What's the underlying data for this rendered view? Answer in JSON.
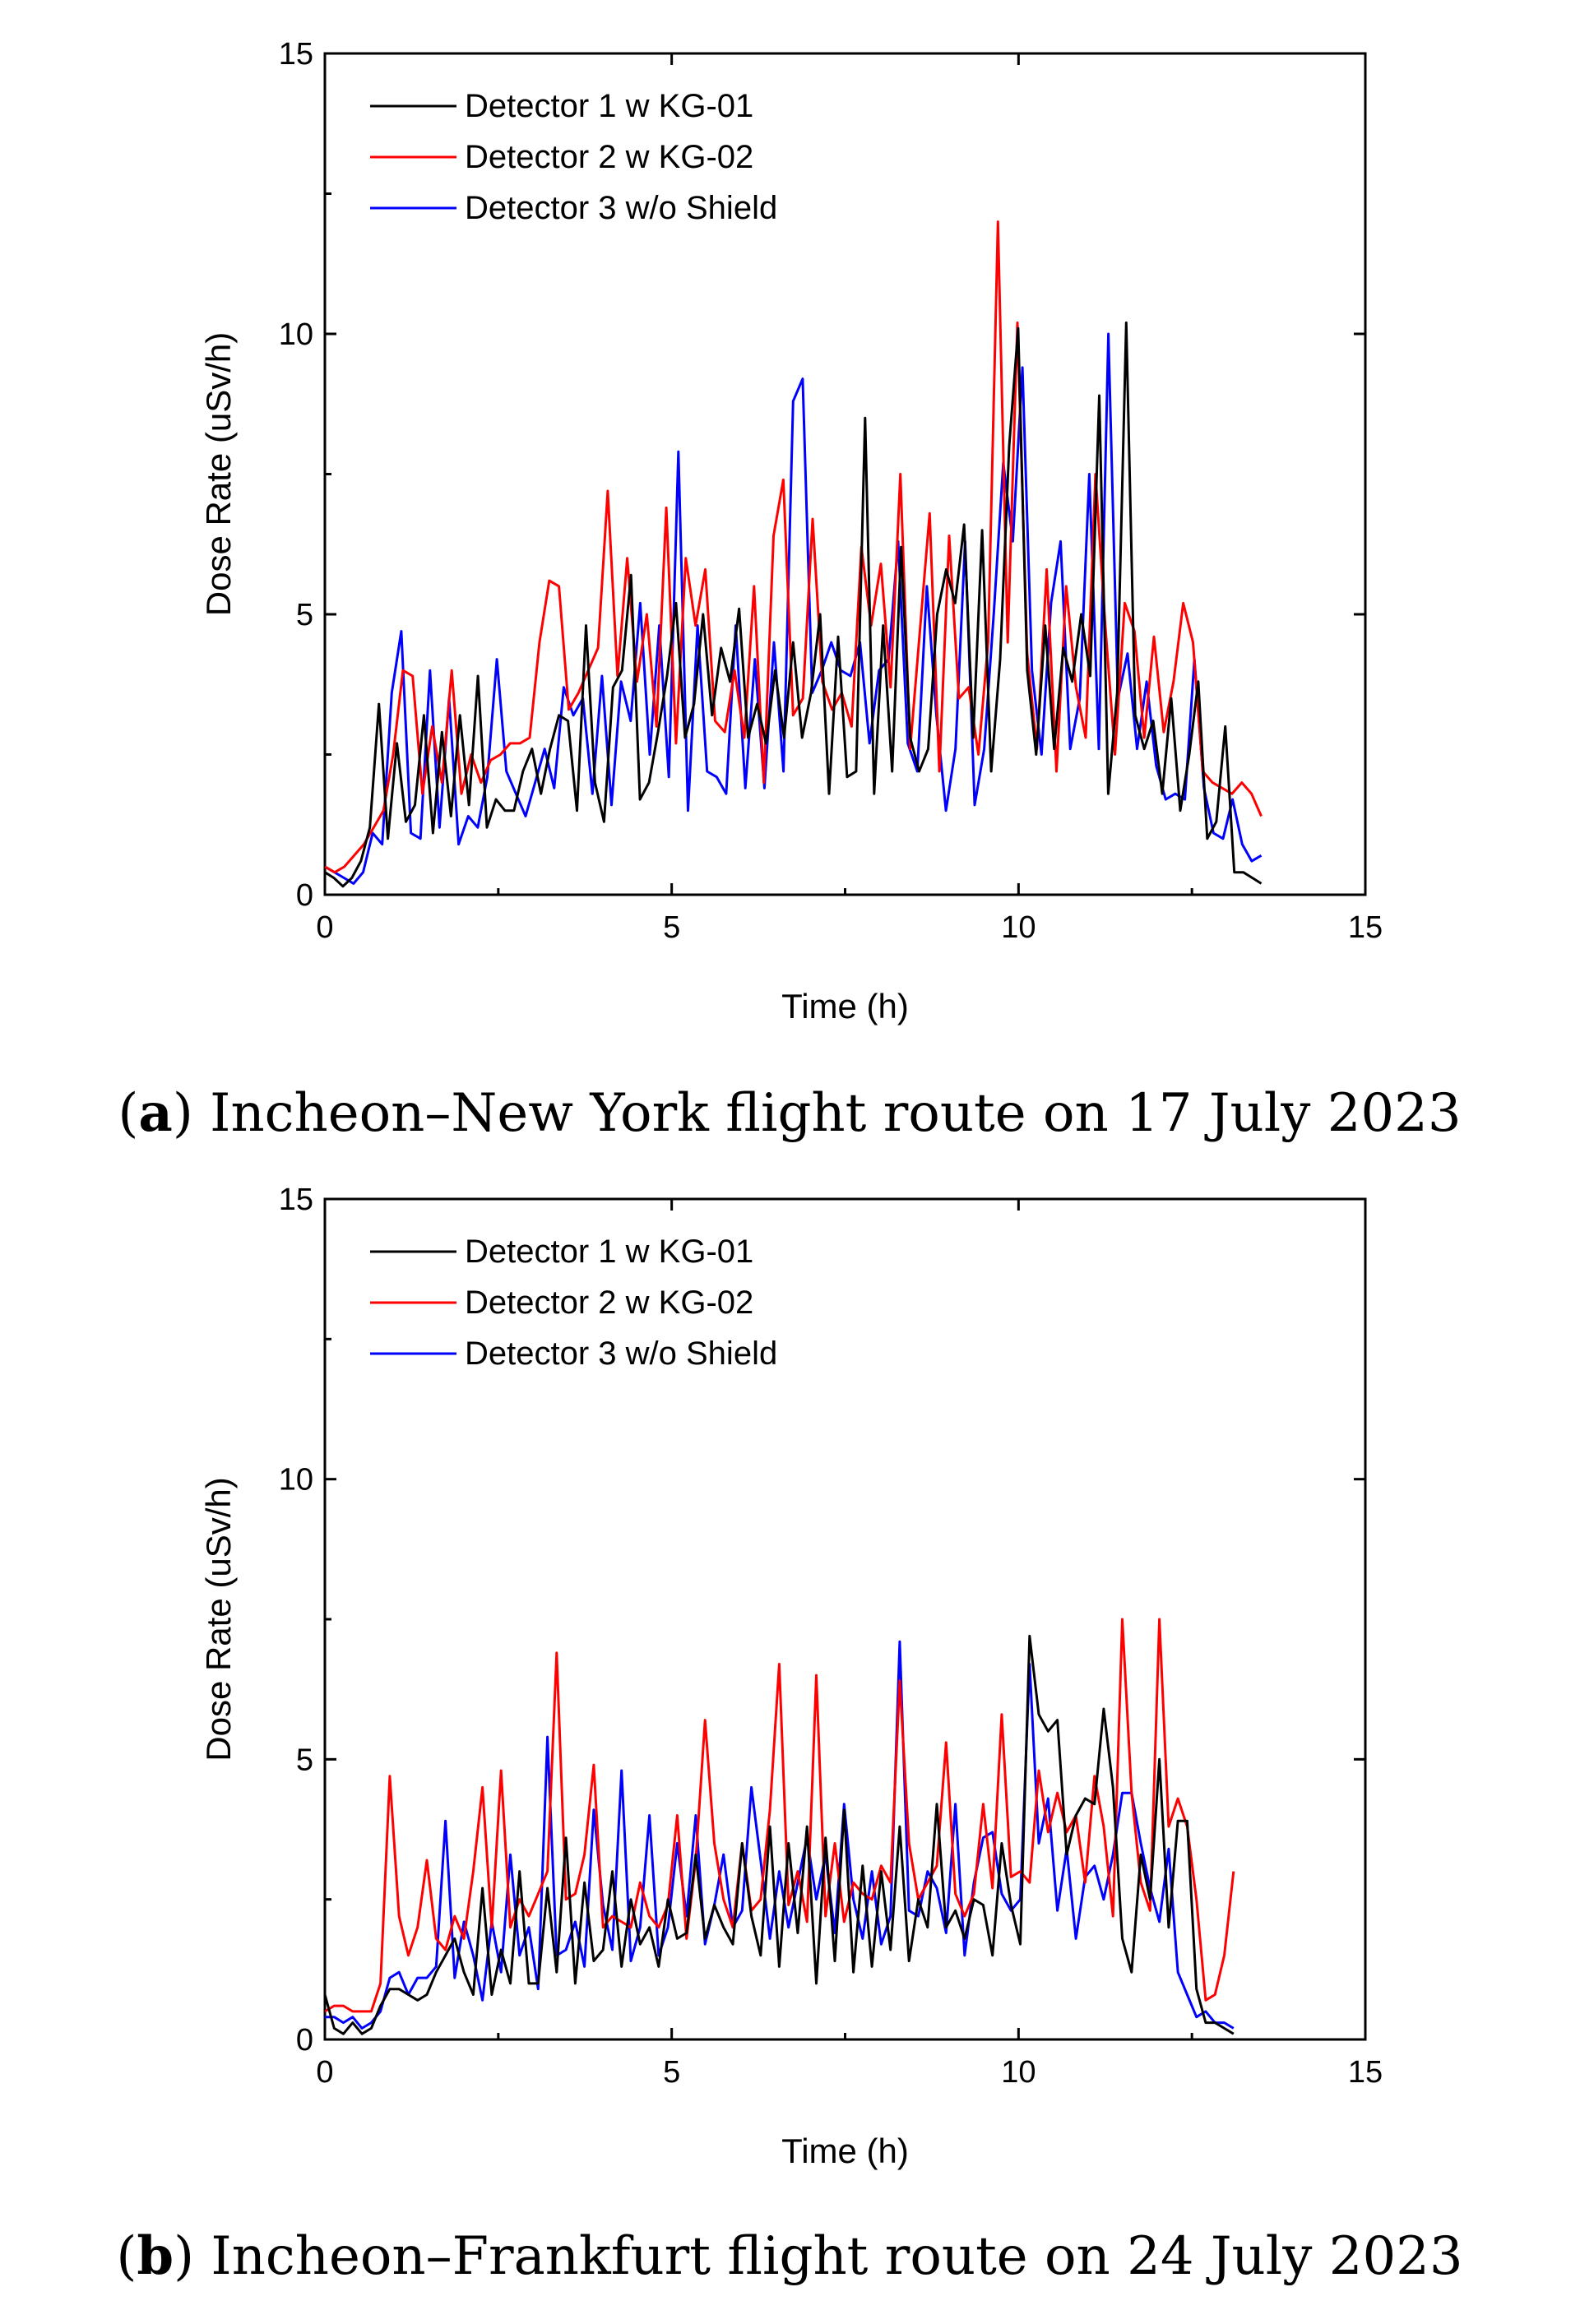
{
  "chart_data": [
    {
      "type": "line",
      "caption_letter": "a",
      "caption_text": "Incheon–New York flight route on 17 July 2023",
      "xlabel": "Time (h)",
      "ylabel": "Dose Rate (uSv/h)",
      "xlim": [
        0,
        15
      ],
      "ylim": [
        0,
        15
      ],
      "xticks": [
        "0",
        "5",
        "10",
        "15"
      ],
      "yticks": [
        "0",
        "5",
        "10",
        "15"
      ],
      "legend_position": "top-left",
      "series": [
        {
          "name": "Detector 1 w KG-01",
          "color": "#000000",
          "values": [
            0.4,
            0.3,
            0.15,
            0.3,
            0.6,
            1.2,
            3.4,
            1.0,
            2.7,
            1.3,
            1.6,
            3.2,
            1.1,
            2.9,
            1.4,
            3.2,
            1.6,
            3.9,
            1.2,
            1.7,
            1.5,
            1.5,
            2.2,
            2.6,
            1.8,
            2.6,
            3.2,
            3.1,
            1.5,
            4.8,
            2.0,
            1.3,
            3.7,
            4.0,
            5.7,
            1.7,
            2.0,
            2.9,
            3.9,
            5.2,
            2.8,
            3.4,
            5.0,
            3.2,
            4.4,
            3.8,
            5.1,
            2.8,
            3.4,
            2.7,
            4.0,
            2.8,
            4.5,
            2.8,
            3.6,
            5.0,
            1.8,
            4.6,
            2.1,
            2.2,
            8.5,
            1.8,
            4.8,
            2.2,
            6.2,
            2.8,
            2.2,
            2.6,
            5.0,
            5.8,
            5.2,
            6.6,
            2.8,
            6.5,
            2.2,
            4.2,
            8.0,
            10.1,
            4.0,
            2.5,
            4.8,
            2.6,
            4.4,
            3.8,
            5.0,
            3.9,
            8.9,
            1.8,
            3.6,
            10.2,
            3.2,
            2.6,
            3.1,
            1.8,
            3.5,
            1.5,
            2.5,
            3.8,
            1.0,
            1.3,
            3.0,
            0.4,
            0.4,
            0.3,
            0.2
          ]
        },
        {
          "name": "Detector 2 w KG-02",
          "color": "#ff0000",
          "values": [
            0.5,
            0.4,
            0.5,
            0.7,
            0.9,
            1.2,
            1.5,
            2.5,
            4.0,
            3.9,
            1.8,
            3.0,
            2.0,
            4.0,
            1.8,
            2.5,
            2.0,
            2.4,
            2.5,
            2.7,
            2.7,
            2.8,
            4.5,
            5.6,
            5.5,
            3.3,
            3.6,
            4.0,
            4.4,
            7.2,
            3.9,
            6.0,
            3.8,
            5.0,
            3.0,
            6.9,
            2.7,
            6.0,
            4.8,
            5.8,
            3.1,
            2.9,
            4.0,
            2.8,
            5.5,
            2.0,
            6.4,
            7.4,
            3.2,
            3.5,
            6.7,
            3.8,
            3.3,
            3.6,
            3.0,
            6.2,
            4.8,
            5.9,
            3.7,
            7.5,
            2.6,
            4.7,
            6.8,
            2.2,
            6.4,
            3.5,
            3.7,
            2.5,
            4.5,
            12.0,
            4.5,
            10.2,
            4.3,
            2.6,
            5.8,
            2.2,
            5.5,
            3.7,
            2.8,
            7.5,
            4.8,
            2.5,
            5.2,
            4.7,
            2.8,
            4.6,
            2.9,
            3.8,
            5.2,
            4.5,
            2.2,
            2.0,
            1.9,
            1.8,
            2.0,
            1.8,
            1.4
          ]
        },
        {
          "name": "Detector 3 w/o Shield",
          "color": "#0000ff",
          "values": [
            0.5,
            0.4,
            0.3,
            0.2,
            0.4,
            1.1,
            0.9,
            3.6,
            4.7,
            1.1,
            1.0,
            4.0,
            1.2,
            3.5,
            0.9,
            1.4,
            1.2,
            2.1,
            4.2,
            2.2,
            1.8,
            1.4,
            2.0,
            2.6,
            1.9,
            3.7,
            3.2,
            3.5,
            1.8,
            3.9,
            1.6,
            3.8,
            3.1,
            5.2,
            2.5,
            4.8,
            2.1,
            7.9,
            1.5,
            4.8,
            2.2,
            2.1,
            1.8,
            4.8,
            1.9,
            4.2,
            1.9,
            4.5,
            2.2,
            8.8,
            9.2,
            3.6,
            4.0,
            4.5,
            4.0,
            3.9,
            4.5,
            2.7,
            4.0,
            4.2,
            6.3,
            2.7,
            2.2,
            5.5,
            3.2,
            1.5,
            2.6,
            6.3,
            1.6,
            2.6,
            5.0,
            7.7,
            6.3,
            9.4,
            4.0,
            2.5,
            5.2,
            6.3,
            2.6,
            3.5,
            7.5,
            2.6,
            10.0,
            3.5,
            4.3,
            2.6,
            3.8,
            2.3,
            1.7,
            1.8,
            1.7,
            4.2,
            1.9,
            1.1,
            1.0,
            1.7,
            0.9,
            0.6,
            0.7
          ]
        }
      ]
    },
    {
      "type": "line",
      "caption_letter": "b",
      "caption_text": "Incheon–Frankfurt flight route on 24 July 2023",
      "xlabel": "Time (h)",
      "ylabel": "Dose Rate (uSv/h)",
      "xlim": [
        0,
        15
      ],
      "ylim": [
        0,
        15
      ],
      "xticks": [
        "0",
        "5",
        "10",
        "15"
      ],
      "yticks": [
        "0",
        "5",
        "10",
        "15"
      ],
      "legend_position": "top-left",
      "series": [
        {
          "name": "Detector 1 w KG-01",
          "color": "#000000",
          "values": [
            0.8,
            0.2,
            0.1,
            0.3,
            0.1,
            0.2,
            0.6,
            0.9,
            0.9,
            0.8,
            0.7,
            0.8,
            1.2,
            1.5,
            1.8,
            1.2,
            0.8,
            2.7,
            0.8,
            1.6,
            1.0,
            3.0,
            1.0,
            1.0,
            2.7,
            1.2,
            3.6,
            1.0,
            2.8,
            1.4,
            1.6,
            3.0,
            1.3,
            2.5,
            1.7,
            2.0,
            1.3,
            2.5,
            1.8,
            1.9,
            3.3,
            1.8,
            2.4,
            2.0,
            1.7,
            3.5,
            2.2,
            1.5,
            3.8,
            1.3,
            3.5,
            1.9,
            3.8,
            1.0,
            3.6,
            1.4,
            4.1,
            1.2,
            3.1,
            1.3,
            3.0,
            1.6,
            3.8,
            1.4,
            2.5,
            2.0,
            4.2,
            2.0,
            2.3,
            1.8,
            2.5,
            2.4,
            1.5,
            3.5,
            2.4,
            1.7,
            7.2,
            5.8,
            5.5,
            5.7,
            3.3,
            4.0,
            4.3,
            4.2,
            5.9,
            4.5,
            1.8,
            1.2,
            3.3,
            2.5,
            5.0,
            2.0,
            3.9,
            3.9,
            0.9,
            0.3,
            0.3,
            0.2,
            0.1
          ]
        },
        {
          "name": "Detector 2 w KG-02",
          "color": "#ff0000",
          "values": [
            0.5,
            0.6,
            0.6,
            0.5,
            0.5,
            0.5,
            1.0,
            4.7,
            2.2,
            1.5,
            2.0,
            3.2,
            1.8,
            1.6,
            2.2,
            1.8,
            3.0,
            4.5,
            2.0,
            4.8,
            2.0,
            2.5,
            2.2,
            2.6,
            3.0,
            6.9,
            2.5,
            2.6,
            3.3,
            4.9,
            2.0,
            2.2,
            2.1,
            2.0,
            2.8,
            2.2,
            2.0,
            2.4,
            4.0,
            1.8,
            3.2,
            5.7,
            3.5,
            2.5,
            2.0,
            3.5,
            2.3,
            2.5,
            4.1,
            6.7,
            2.4,
            3.0,
            2.1,
            6.5,
            2.2,
            3.5,
            2.1,
            2.8,
            2.6,
            2.5,
            3.1,
            2.8,
            6.4,
            3.5,
            2.5,
            2.8,
            3.1,
            5.3,
            2.6,
            2.2,
            2.6,
            4.2,
            2.7,
            5.8,
            2.9,
            3.0,
            2.8,
            4.8,
            3.7,
            4.4,
            3.7,
            4.0,
            2.8,
            4.7,
            3.8,
            2.2,
            7.5,
            4.4,
            2.8,
            2.3,
            7.5,
            3.8,
            4.3,
            3.8,
            2.5,
            0.7,
            0.8,
            1.5,
            3.0
          ]
        },
        {
          "name": "Detector 3 w/o Shield",
          "color": "#0000ff",
          "values": [
            0.4,
            0.4,
            0.3,
            0.4,
            0.2,
            0.3,
            0.5,
            1.1,
            1.2,
            0.8,
            1.1,
            1.1,
            1.3,
            3.9,
            1.1,
            2.1,
            1.5,
            0.7,
            2.1,
            1.2,
            3.3,
            1.5,
            2.0,
            0.9,
            5.4,
            1.5,
            1.6,
            2.1,
            1.3,
            4.1,
            2.4,
            1.6,
            4.8,
            1.4,
            2.0,
            4.0,
            1.5,
            2.0,
            3.5,
            2.2,
            4.0,
            1.7,
            2.4,
            3.3,
            2.0,
            2.3,
            4.5,
            3.2,
            1.8,
            3.0,
            2.0,
            2.8,
            3.6,
            2.5,
            3.3,
            1.9,
            4.2,
            2.5,
            1.8,
            3.0,
            1.7,
            2.2,
            7.1,
            2.3,
            2.2,
            3.0,
            2.7,
            1.9,
            4.2,
            1.5,
            2.8,
            3.6,
            3.7,
            2.6,
            2.3,
            2.5,
            6.7,
            3.5,
            4.3,
            2.3,
            3.4,
            1.8,
            2.9,
            3.1,
            2.5,
            3.3,
            4.4,
            4.4,
            3.5,
            2.7,
            2.1,
            3.4,
            1.2,
            0.8,
            0.4,
            0.5,
            0.3,
            0.3,
            0.2
          ]
        }
      ]
    }
  ]
}
